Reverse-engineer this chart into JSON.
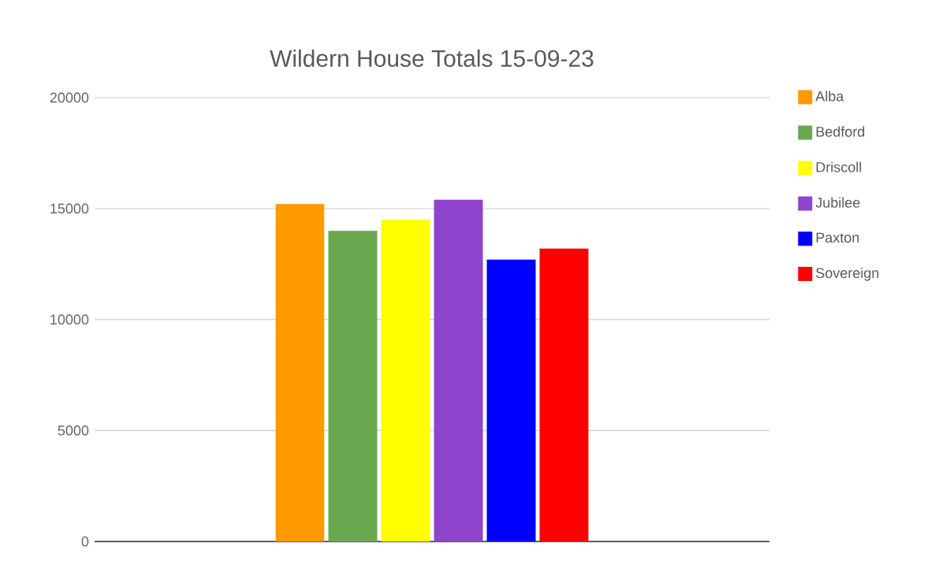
{
  "chart_data": {
    "type": "bar",
    "title": "Wildern House Totals 15-09-23",
    "categories": [
      null
    ],
    "series": [
      {
        "name": "Alba",
        "color": "#ff9900",
        "values": [
          15200
        ]
      },
      {
        "name": "Bedford",
        "color": "#6aa84f",
        "values": [
          14000
        ]
      },
      {
        "name": "Driscoll",
        "color": "#ffff00",
        "values": [
          14500
        ]
      },
      {
        "name": "Jubilee",
        "color": "#8e44cc",
        "values": [
          15400
        ]
      },
      {
        "name": "Paxton",
        "color": "#0000ff",
        "values": [
          12700
        ]
      },
      {
        "name": "Sovereign",
        "color": "#ff0000",
        "values": [
          13200
        ]
      }
    ],
    "ylim": [
      0,
      20000
    ],
    "yticks": [
      0,
      5000,
      10000,
      15000,
      20000
    ],
    "grid": "y",
    "legend": "right"
  }
}
